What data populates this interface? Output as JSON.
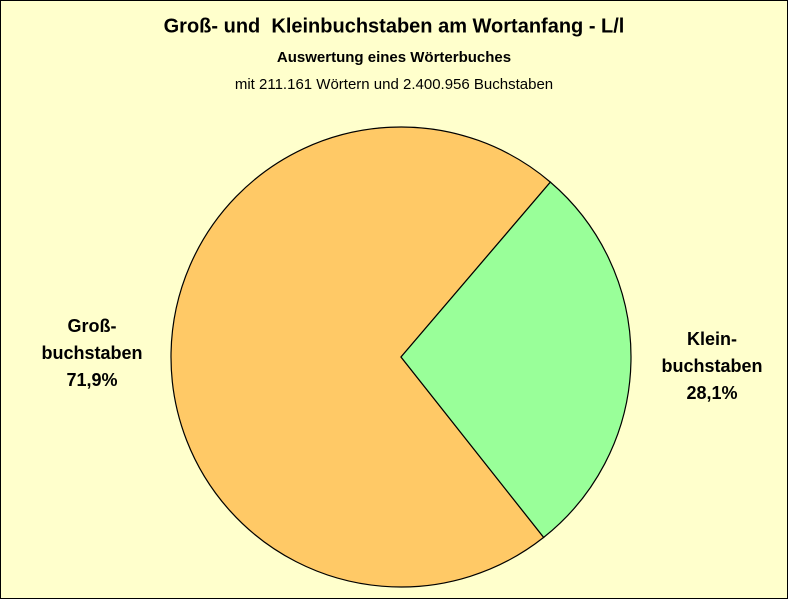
{
  "chart_data": {
    "type": "pie",
    "title": "Groß- und  Kleinbuchstaben am Wortanfang - L/l",
    "subtitle": "Auswertung eines Wörterbuches",
    "note": "mit 211.161 Wörtern und 2.400.956 Buchstaben",
    "categories": [
      [
        "Groß-",
        "buchstaben"
      ],
      [
        "Klein-",
        "buchstaben"
      ]
    ],
    "values": [
      71.9,
      28.1
    ],
    "value_labels": [
      "71,9%",
      "28,1%"
    ],
    "colors": [
      "#ffc966",
      "#99ff99"
    ]
  }
}
